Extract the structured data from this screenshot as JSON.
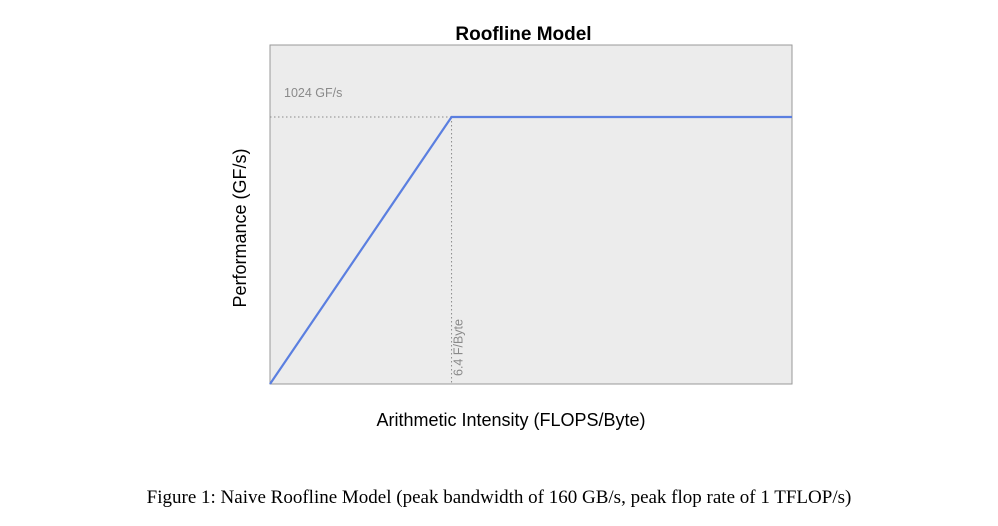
{
  "chart_data": {
    "type": "line",
    "title": "Roofline Model",
    "xlabel": "Arithmetic Intensity (FLOPS/Byte)",
    "ylabel": "Performance (GF/s)",
    "series": [
      {
        "x": [
          0,
          6.4,
          18.4
        ],
        "y": [
          0,
          1024,
          1024
        ],
        "color": "#5b7fe0"
      }
    ],
    "xlim": [
      0,
      18.4
    ],
    "ylim": [
      0,
      1300
    ],
    "grid": false,
    "annotations": [
      {
        "axis": "y",
        "value": 1024,
        "label": "1024 GF/s",
        "style": "dotted"
      },
      {
        "axis": "x",
        "value": 6.4,
        "label": "6.4 F/Byte",
        "style": "dotted"
      }
    ],
    "colors": {
      "plot_background": "#ececec",
      "plot_border": "#999999",
      "roof_line": "#5b7fe0",
      "annotation": "#8a8a8a"
    }
  },
  "caption": "Figure 1: Naive Roofline Model (peak bandwidth of 160 GB/s, peak flop rate of 1 TFLOP/s)"
}
